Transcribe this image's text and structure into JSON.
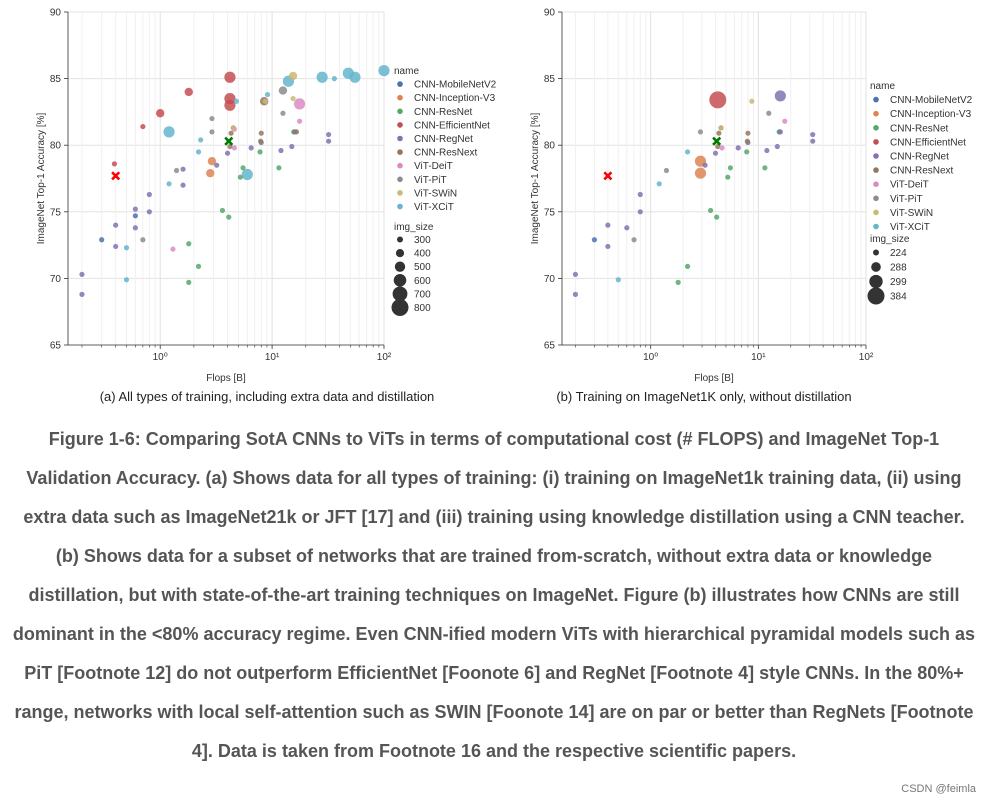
{
  "chart_data": [
    {
      "type": "scatter",
      "id": "a",
      "xlabel": "Flops [B]",
      "ylabel": "ImageNet Top-1 Accuracy [%]",
      "xscale": "log",
      "xlim": [
        0.15,
        100
      ],
      "ylim": [
        65,
        90
      ],
      "yticks": [
        65,
        70,
        75,
        80,
        85,
        90
      ],
      "xticks": [
        {
          "value": 1,
          "label": "10⁰"
        },
        {
          "value": 10,
          "label": "10¹"
        },
        {
          "value": 100,
          "label": "10²"
        }
      ],
      "grid": true,
      "caption": "(a) All types of training, including extra data and distillation",
      "legend": {
        "title": "name",
        "size_title": "img_size",
        "entries": [
          {
            "name": "CNN-MobileNetV2",
            "color": "#4c72b0"
          },
          {
            "name": "CNN-Inception-V3",
            "color": "#dd8452"
          },
          {
            "name": "CNN-ResNet",
            "color": "#55a868"
          },
          {
            "name": "CNN-EfficientNet",
            "color": "#c44e52"
          },
          {
            "name": "CNN-RegNet",
            "color": "#8172b3"
          },
          {
            "name": "CNN-ResNext",
            "color": "#937860"
          },
          {
            "name": "ViT-DeiT",
            "color": "#da8bc3"
          },
          {
            "name": "ViT-PiT",
            "color": "#8c8c8c"
          },
          {
            "name": "ViT-SWiN",
            "color": "#ccb974"
          },
          {
            "name": "ViT-XCiT",
            "color": "#64b5cd"
          }
        ],
        "sizes": [
          "300",
          "400",
          "500",
          "600",
          "700",
          "800"
        ]
      },
      "highlights": [
        {
          "label": "EfficientNet (red X)",
          "x": 0.4,
          "y": 77.7,
          "color": "#ff0000"
        },
        {
          "label": "RegNet (green X)",
          "x": 4.1,
          "y": 80.3,
          "color": "#007a00"
        }
      ],
      "series": [
        {
          "name": "CNN-MobileNetV2",
          "points": [
            [
              0.3,
              72.9,
              1
            ],
            [
              0.6,
              74.7,
              1
            ]
          ]
        },
        {
          "name": "CNN-Inception-V3",
          "points": [
            [
              2.8,
              77.9,
              2
            ],
            [
              2.9,
              78.8,
              2
            ]
          ]
        },
        {
          "name": "CNN-ResNet",
          "points": [
            [
              1.8,
              69.7,
              1
            ],
            [
              1.8,
              72.6,
              1
            ],
            [
              2.2,
              70.9,
              1
            ],
            [
              3.6,
              75.1,
              1
            ],
            [
              4.1,
              74.6,
              1
            ],
            [
              5.2,
              77.6,
              1
            ],
            [
              5.5,
              78.3,
              1
            ],
            [
              7.8,
              79.5,
              1
            ],
            [
              11.5,
              78.3,
              1
            ],
            [
              15.6,
              81.0,
              1
            ]
          ]
        },
        {
          "name": "CNN-EfficientNet",
          "points": [
            [
              0.39,
              78.6,
              1
            ],
            [
              0.7,
              81.4,
              1
            ],
            [
              1.0,
              82.4,
              2
            ],
            [
              1.8,
              84.0,
              2
            ],
            [
              4.2,
              83.5,
              3
            ],
            [
              4.2,
              83.0,
              3
            ],
            [
              4.2,
              85.1,
              3
            ]
          ]
        },
        {
          "name": "CNN-RegNet",
          "points": [
            [
              0.2,
              68.8,
              1
            ],
            [
              0.2,
              70.3,
              1
            ],
            [
              0.4,
              72.4,
              1
            ],
            [
              0.4,
              74.0,
              1
            ],
            [
              0.6,
              75.2,
              1
            ],
            [
              0.6,
              73.8,
              1
            ],
            [
              0.8,
              75.0,
              1
            ],
            [
              0.8,
              76.3,
              1
            ],
            [
              1.6,
              77.0,
              1
            ],
            [
              1.6,
              78.2,
              1
            ],
            [
              3.2,
              78.5,
              1
            ],
            [
              4.0,
              79.4,
              1
            ],
            [
              6.5,
              79.8,
              1
            ],
            [
              8.0,
              80.2,
              1
            ],
            [
              12.0,
              79.6,
              1
            ],
            [
              15.0,
              79.9,
              1
            ],
            [
              16.0,
              81.0,
              1
            ],
            [
              32.0,
              80.3,
              1
            ],
            [
              32.0,
              80.8,
              1
            ]
          ]
        },
        {
          "name": "CNN-ResNext",
          "points": [
            [
              4.2,
              79.9,
              1
            ],
            [
              4.3,
              80.9,
              1
            ],
            [
              4.5,
              81.3,
              1
            ],
            [
              7.9,
              80.3,
              1
            ],
            [
              8.0,
              80.9,
              1
            ],
            [
              8.5,
              83.3,
              2
            ],
            [
              16.5,
              81.0,
              1
            ]
          ]
        },
        {
          "name": "ViT-DeiT",
          "points": [
            [
              1.3,
              72.2,
              1
            ],
            [
              4.6,
              79.8,
              1
            ],
            [
              4.6,
              81.2,
              1
            ],
            [
              17.6,
              81.8,
              1
            ],
            [
              17.6,
              83.1,
              3
            ]
          ]
        },
        {
          "name": "ViT-PiT",
          "points": [
            [
              0.7,
              72.9,
              1
            ],
            [
              1.4,
              78.1,
              1
            ],
            [
              2.9,
              81.0,
              1
            ],
            [
              2.9,
              82.0,
              1
            ],
            [
              12.5,
              82.4,
              1
            ],
            [
              12.5,
              84.1,
              2
            ]
          ]
        },
        {
          "name": "ViT-SWiN",
          "points": [
            [
              4.5,
              81.3,
              1
            ],
            [
              8.7,
              83.3,
              1
            ],
            [
              15.4,
              83.5,
              1
            ],
            [
              15.4,
              85.2,
              2
            ]
          ]
        },
        {
          "name": "ViT-XCiT",
          "points": [
            [
              0.5,
              72.3,
              1
            ],
            [
              0.5,
              69.9,
              1
            ],
            [
              1.2,
              77.1,
              1
            ],
            [
              1.2,
              81.0,
              3
            ],
            [
              2.2,
              79.5,
              1
            ],
            [
              2.3,
              80.4,
              1
            ],
            [
              4.8,
              83.3,
              1
            ],
            [
              6.0,
              77.8,
              3
            ],
            [
              9.1,
              83.8,
              1
            ],
            [
              14.0,
              84.8,
              3
            ],
            [
              28.0,
              85.1,
              3
            ],
            [
              36.0,
              85.0,
              1
            ],
            [
              48.0,
              85.4,
              3
            ],
            [
              55.0,
              85.1,
              3
            ],
            [
              100.0,
              85.6,
              3
            ]
          ]
        }
      ]
    },
    {
      "type": "scatter",
      "id": "b",
      "xlabel": "Flops [B]",
      "ylabel": "ImageNet Top-1 Accuracy [%]",
      "xscale": "log",
      "xlim": [
        0.15,
        100
      ],
      "ylim": [
        65,
        90
      ],
      "yticks": [
        65,
        70,
        75,
        80,
        85,
        90
      ],
      "xticks": [
        {
          "value": 1,
          "label": "10⁰"
        },
        {
          "value": 10,
          "label": "10¹"
        },
        {
          "value": 100,
          "label": "10²"
        }
      ],
      "grid": true,
      "caption": "(b) Training on ImageNet1K only, without distillation",
      "legend": {
        "title": "name",
        "size_title": "img_size",
        "entries": [
          {
            "name": "CNN-MobileNetV2",
            "color": "#4c72b0"
          },
          {
            "name": "CNN-Inception-V3",
            "color": "#dd8452"
          },
          {
            "name": "CNN-ResNet",
            "color": "#55a868"
          },
          {
            "name": "CNN-EfficientNet",
            "color": "#c44e52"
          },
          {
            "name": "CNN-RegNet",
            "color": "#8172b3"
          },
          {
            "name": "CNN-ResNext",
            "color": "#937860"
          },
          {
            "name": "ViT-DeiT",
            "color": "#da8bc3"
          },
          {
            "name": "ViT-PiT",
            "color": "#8c8c8c"
          },
          {
            "name": "ViT-SWiN",
            "color": "#ccb974"
          },
          {
            "name": "ViT-XCiT",
            "color": "#64b5cd"
          }
        ],
        "sizes": [
          "224",
          "288",
          "299",
          "384"
        ]
      },
      "highlights": [
        {
          "label": "EfficientNet (red X)",
          "x": 0.4,
          "y": 77.7,
          "color": "#ff0000"
        },
        {
          "label": "RegNet (green X)",
          "x": 4.1,
          "y": 80.3,
          "color": "#007a00"
        }
      ],
      "series": [
        {
          "name": "CNN-MobileNetV2",
          "points": [
            [
              0.3,
              72.9,
              1
            ]
          ]
        },
        {
          "name": "CNN-Inception-V3",
          "points": [
            [
              2.9,
              77.9,
              3
            ],
            [
              2.9,
              78.8,
              3
            ]
          ]
        },
        {
          "name": "CNN-ResNet",
          "points": [
            [
              1.8,
              69.7,
              1
            ],
            [
              2.2,
              70.9,
              1
            ],
            [
              3.6,
              75.1,
              1
            ],
            [
              4.1,
              74.6,
              1
            ],
            [
              5.2,
              77.6,
              1
            ],
            [
              5.5,
              78.3,
              1
            ],
            [
              7.8,
              79.5,
              1
            ],
            [
              11.5,
              78.3,
              1
            ],
            [
              15.6,
              81.0,
              1
            ]
          ]
        },
        {
          "name": "CNN-EfficientNet",
          "points": [
            [
              4.2,
              83.4,
              4
            ]
          ]
        },
        {
          "name": "CNN-RegNet",
          "points": [
            [
              0.2,
              68.8,
              1
            ],
            [
              0.2,
              70.3,
              1
            ],
            [
              0.4,
              72.4,
              1
            ],
            [
              0.4,
              74.0,
              1
            ],
            [
              0.6,
              73.8,
              1
            ],
            [
              0.8,
              75.0,
              1
            ],
            [
              0.8,
              76.3,
              1
            ],
            [
              3.2,
              78.5,
              1
            ],
            [
              4.0,
              79.4,
              1
            ],
            [
              6.5,
              79.8,
              1
            ],
            [
              8.0,
              80.2,
              1
            ],
            [
              12.0,
              79.6,
              1
            ],
            [
              15.0,
              79.9,
              1
            ],
            [
              16.0,
              81.0,
              1
            ],
            [
              16.0,
              83.7,
              3
            ],
            [
              32.0,
              80.3,
              1
            ],
            [
              32.0,
              80.8,
              1
            ]
          ]
        },
        {
          "name": "CNN-ResNext",
          "points": [
            [
              4.2,
              79.9,
              1
            ],
            [
              4.3,
              80.9,
              1
            ],
            [
              4.5,
              81.3,
              1
            ],
            [
              7.9,
              80.3,
              1
            ],
            [
              8.0,
              80.9,
              1
            ]
          ]
        },
        {
          "name": "ViT-DeiT",
          "points": [
            [
              4.6,
              79.8,
              1
            ],
            [
              17.6,
              81.8,
              1
            ]
          ]
        },
        {
          "name": "ViT-PiT",
          "points": [
            [
              0.7,
              72.9,
              1
            ],
            [
              1.4,
              78.1,
              1
            ],
            [
              2.9,
              81.0,
              1
            ],
            [
              12.5,
              82.4,
              1
            ]
          ]
        },
        {
          "name": "ViT-SWiN",
          "points": [
            [
              4.5,
              81.3,
              1
            ],
            [
              8.7,
              83.3,
              1
            ]
          ]
        },
        {
          "name": "ViT-XCiT",
          "points": [
            [
              0.5,
              69.9,
              1
            ],
            [
              1.2,
              77.1,
              1
            ],
            [
              2.2,
              79.5,
              1
            ]
          ]
        }
      ]
    }
  ],
  "figure_caption": "Figure 1-6: Comparing SotA CNNs to ViTs in terms of computational cost (# FLOPS) and ImageNet Top-1 Validation Accuracy. (a) Shows data for all types of training: (i) training on ImageNet1k training data, (ii) using extra data such as ImageNet21k or JFT [17] and (iii) training using knowledge distillation using a CNN teacher. (b) Shows data for a subset of networks that are trained from-scratch, without extra data or knowledge distillation, but with state-of-the-art training techniques on ImageNet. Figure (b) illustrates how CNNs are still dominant in the <80% accuracy regime. Even CNN-ified modern ViTs with hierarchical pyramidal models such as PiT [Footnote 12] do not outperform EfficientNet [Foonote 6] and RegNet [Footnote 4] style CNNs. In the 80%+ range, networks with local self-attention such as SWIN [Foonote 14] are on par or better than RegNets [Footnote 4]. Data is taken from Footnote 16 and the respective scientific papers.",
  "watermark": "CSDN @feimla"
}
